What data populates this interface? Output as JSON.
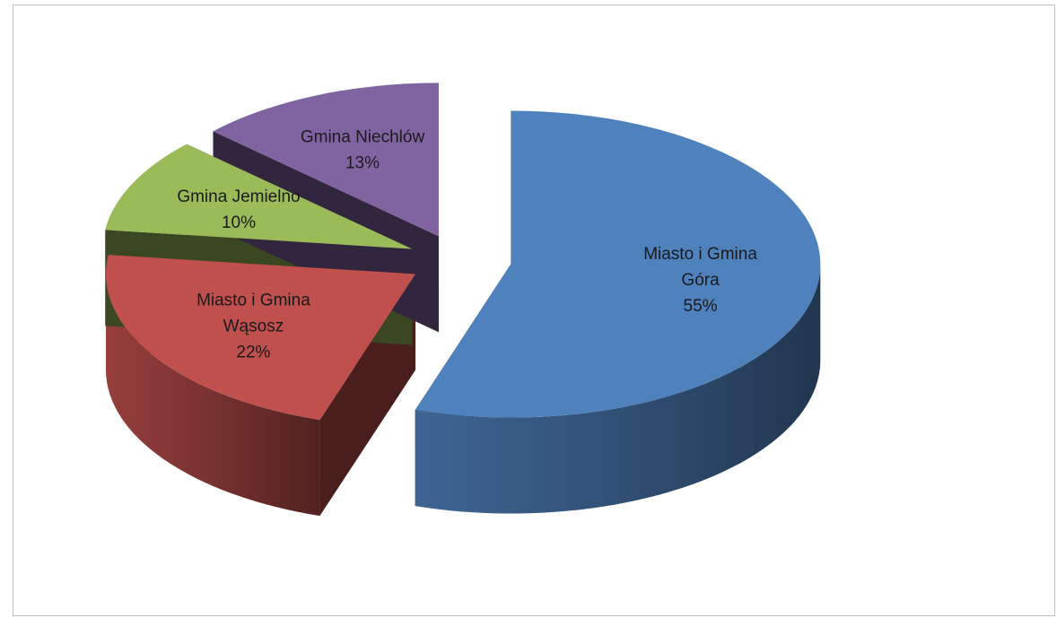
{
  "chart_data": {
    "type": "pie",
    "title": "",
    "style": "3d-exploded",
    "slices": [
      {
        "name": "Miasto i Gmina Góra",
        "label_lines": [
          "Miasto i Gmina",
          "Góra"
        ],
        "percent_label": "55%",
        "value": 55,
        "color": "#4f81bd"
      },
      {
        "name": "Miasto i Gmina Wąsosz",
        "label_lines": [
          "Miasto i Gmina",
          "Wąsosz"
        ],
        "percent_label": "22%",
        "value": 22,
        "color": "#c0504d"
      },
      {
        "name": "Gmina Jemielno",
        "label_lines": [
          "Gmina Jemielno"
        ],
        "percent_label": "10%",
        "value": 10,
        "color": "#9bbb59"
      },
      {
        "name": "Gmina Niechlów",
        "label_lines": [
          "Gmina Niechlów"
        ],
        "percent_label": "13%",
        "value": 13,
        "color": "#8064a2"
      }
    ]
  }
}
